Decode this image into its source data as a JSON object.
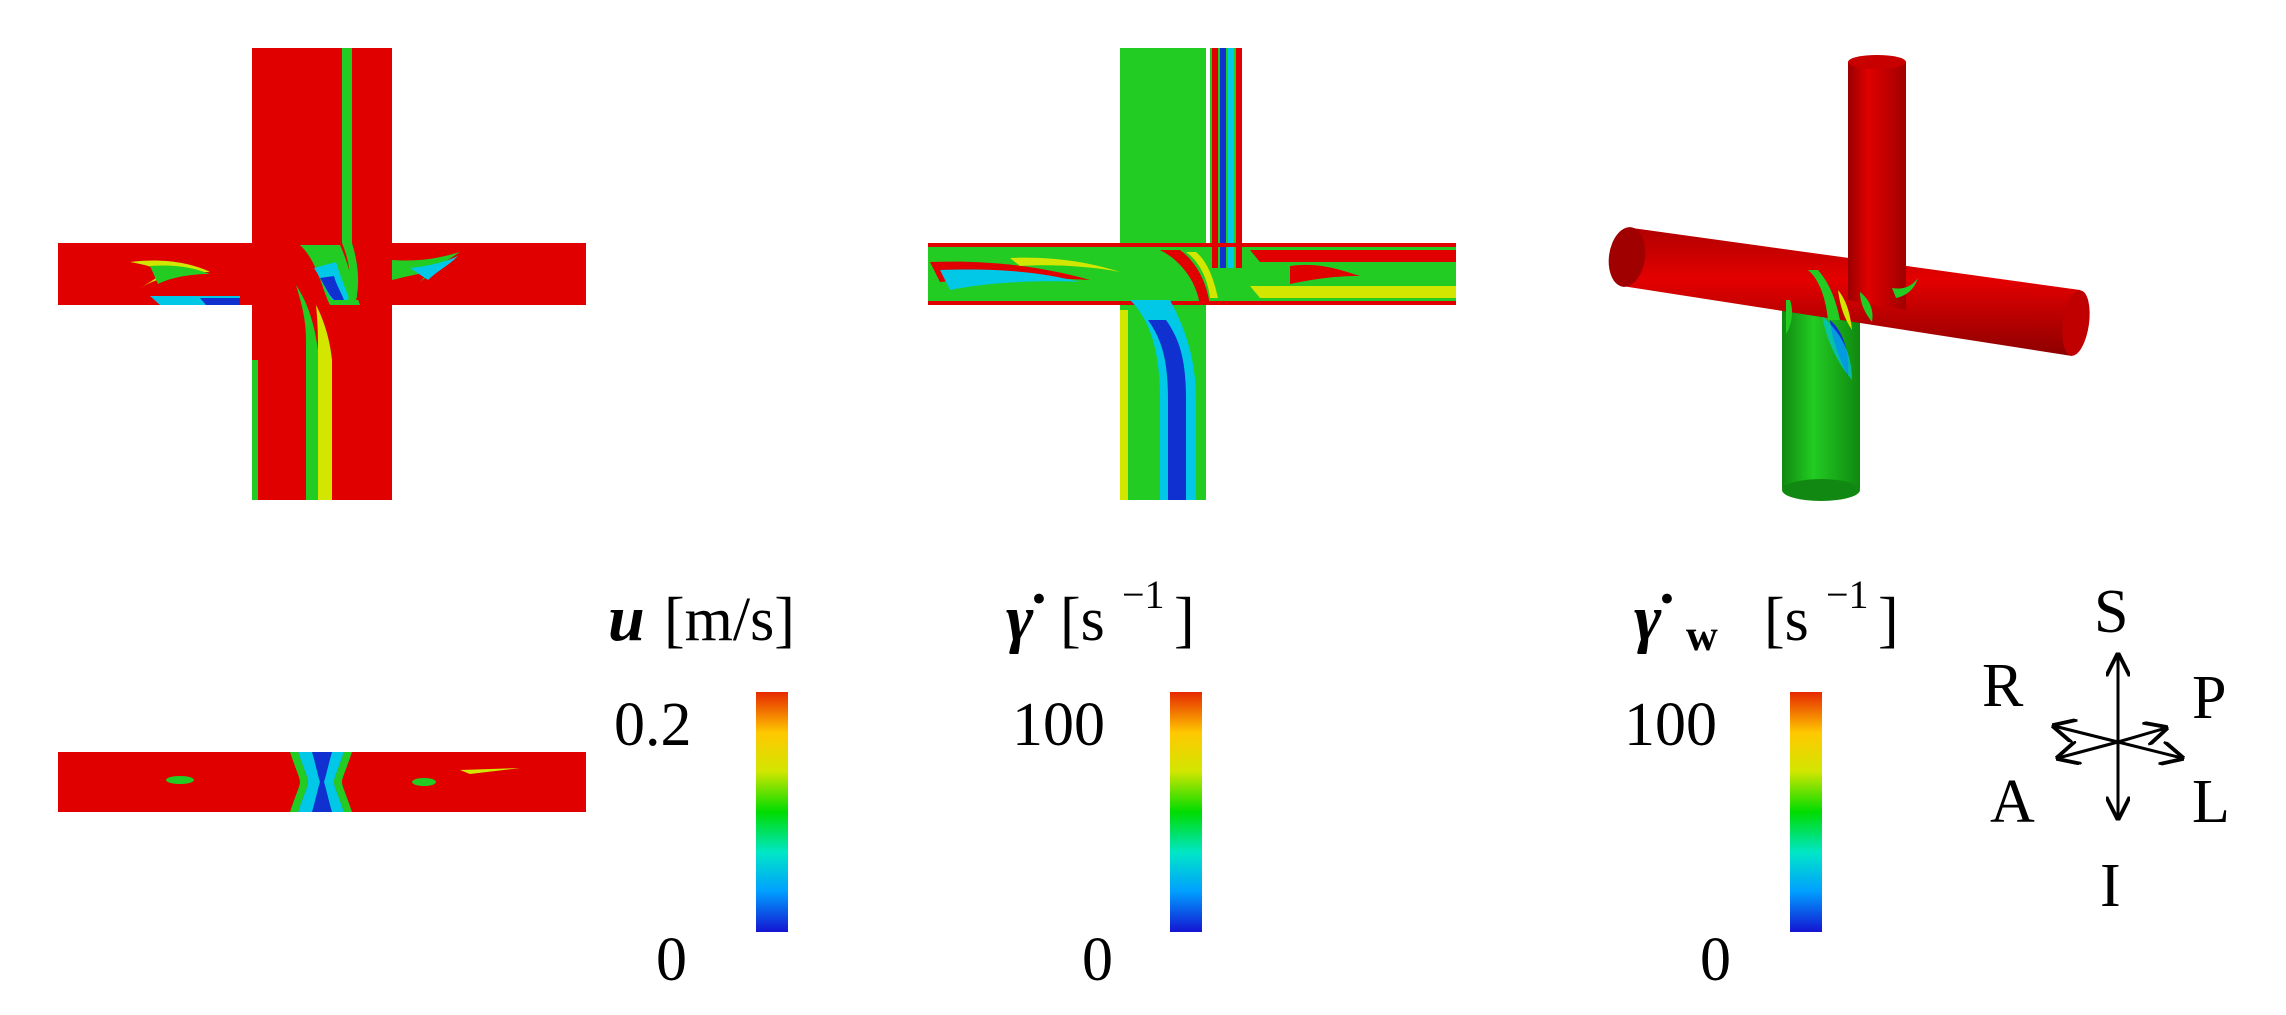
{
  "colormap": [
    "#1414d2",
    "#00a0ff",
    "#00e6c8",
    "#00dc00",
    "#d2e600",
    "#ffc800",
    "#e62800"
  ],
  "colors": {
    "red": "#e00000",
    "green": "#22cc22",
    "cyan": "#00c8e6",
    "blue": "#1030d0",
    "yellow": "#f0e000"
  },
  "legends": [
    {
      "symbol": "u",
      "unit": "[m/s]",
      "max": "0.2",
      "min": "0"
    },
    {
      "symbol": "γ̇",
      "unit": "[s",
      "exp": "−1",
      "close": "]",
      "max": "100",
      "min": "0"
    },
    {
      "symbol": "γ̇",
      "sub": "w",
      "unit": "[s",
      "exp": "−1",
      "close": "]",
      "max": "100",
      "min": "0"
    }
  ],
  "orientation": {
    "S": "S",
    "I": "I",
    "R": "R",
    "P": "P",
    "A": "A",
    "L": "L"
  }
}
